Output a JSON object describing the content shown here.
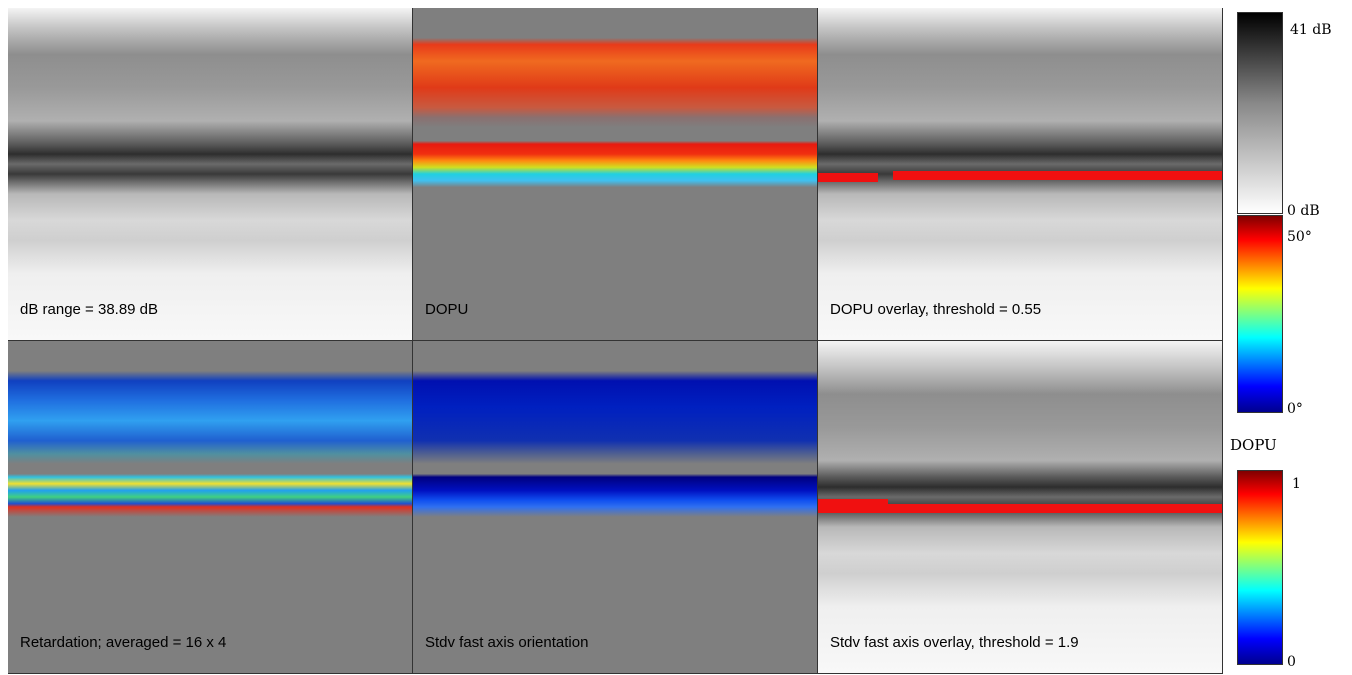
{
  "panels": [
    {
      "label": "dB range = 38.89 dB"
    },
    {
      "label": "DOPU"
    },
    {
      "label": "DOPU overlay, threshold = 0.55"
    },
    {
      "label": "Retardation; averaged = 16 x 4"
    },
    {
      "label": "Stdv fast axis orientation"
    },
    {
      "label": "Stdv fast axis overlay, threshold = 1.9"
    }
  ],
  "colorbars": [
    {
      "top_label": "41 dB",
      "bottom_label": "0 dB"
    },
    {
      "top_label": "50°",
      "bottom_label": "0°"
    },
    {
      "title": "DOPU",
      "top_label": "1",
      "bottom_label": "0"
    }
  ]
}
